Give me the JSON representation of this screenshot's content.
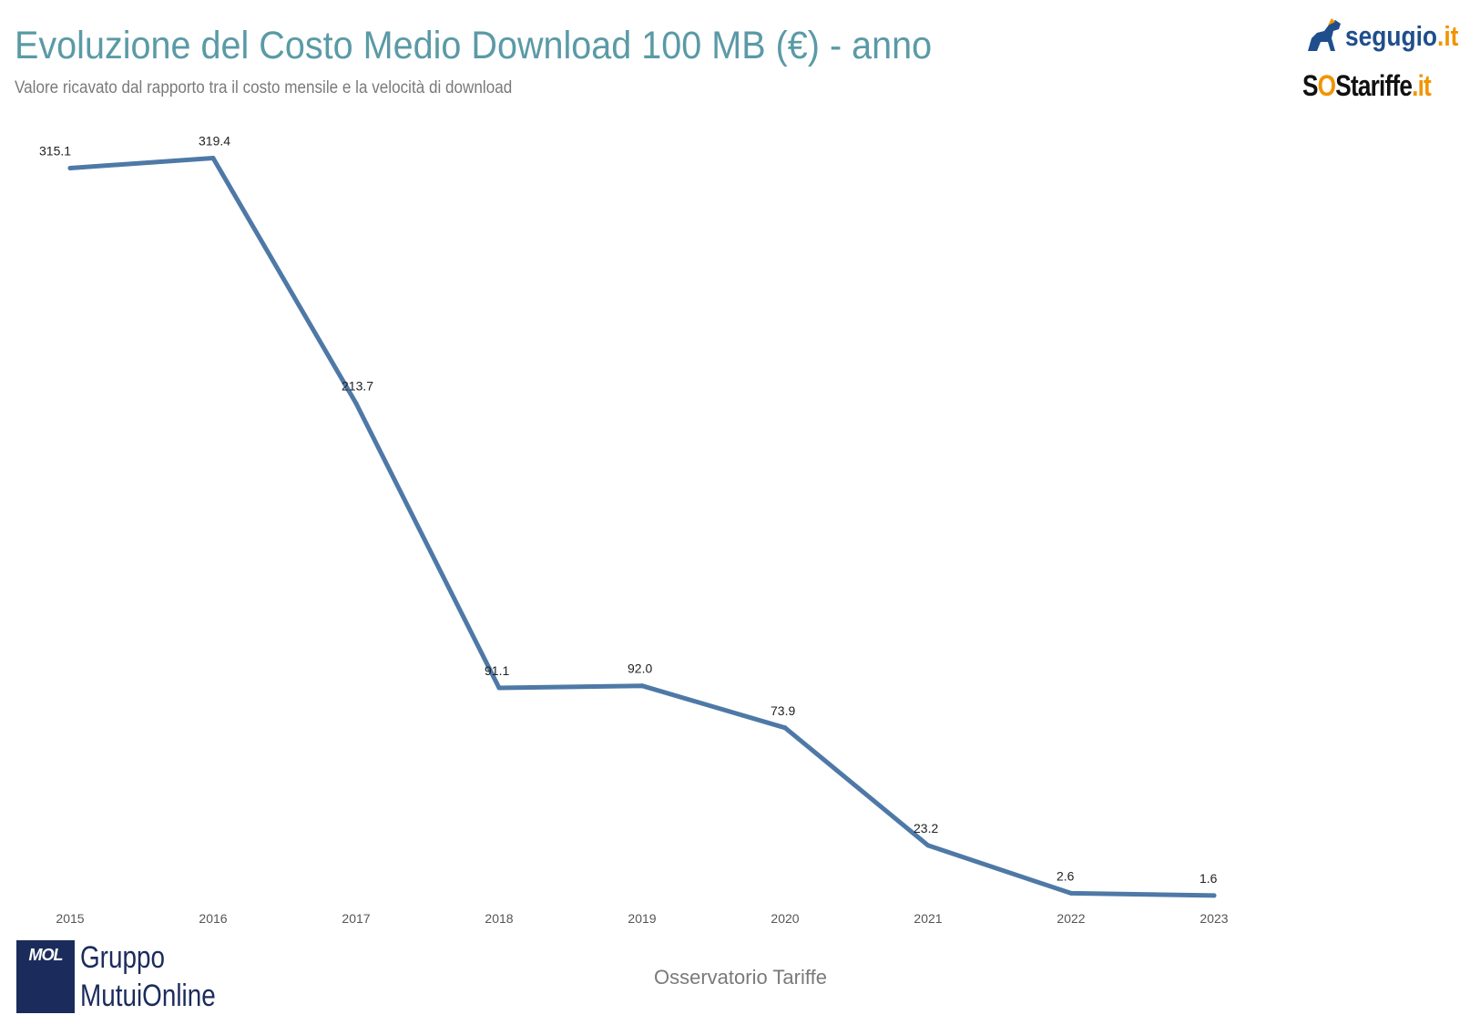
{
  "header": {
    "title": "Evoluzione del Costo Medio Download 100 MB (€) - anno",
    "subtitle": "Valore ricavato dal rapporto tra il costo mensile e la velocità di download"
  },
  "logos": {
    "segugio": {
      "name": "segugio",
      "ext": ".it"
    },
    "sostariffe": {
      "s": "S",
      "o": "O",
      "name": "Stariffe",
      "ext": ".it"
    },
    "mol": {
      "badge": "MOL",
      "line1": "Gruppo",
      "line2": "MutuiOnline"
    }
  },
  "footer": {
    "text": "Osservatorio Tariffe"
  },
  "colors": {
    "line": "#4e79a7",
    "title": "#5a9aa6",
    "brand_blue": "#1b2c5c",
    "brand_orange": "#f29400"
  },
  "chart_data": {
    "type": "line",
    "title": "Evoluzione del Costo Medio Download 100 MB (€) - anno",
    "subtitle": "Valore ricavato dal rapporto tra il costo mensile e la velocità di download",
    "xlabel": "",
    "ylabel": "",
    "categories": [
      "2015",
      "2016",
      "2017",
      "2018",
      "2019",
      "2020",
      "2021",
      "2022",
      "2023"
    ],
    "values": [
      315.1,
      319.4,
      213.7,
      91.1,
      92.0,
      73.9,
      23.2,
      2.6,
      1.6
    ],
    "value_labels": [
      "315.1",
      "319.4",
      "213.7",
      "91.1",
      "92.0",
      "73.9",
      "23.2",
      "2.6",
      "1.6"
    ],
    "ylim": [
      0,
      320
    ],
    "grid": false,
    "legend": "none"
  }
}
